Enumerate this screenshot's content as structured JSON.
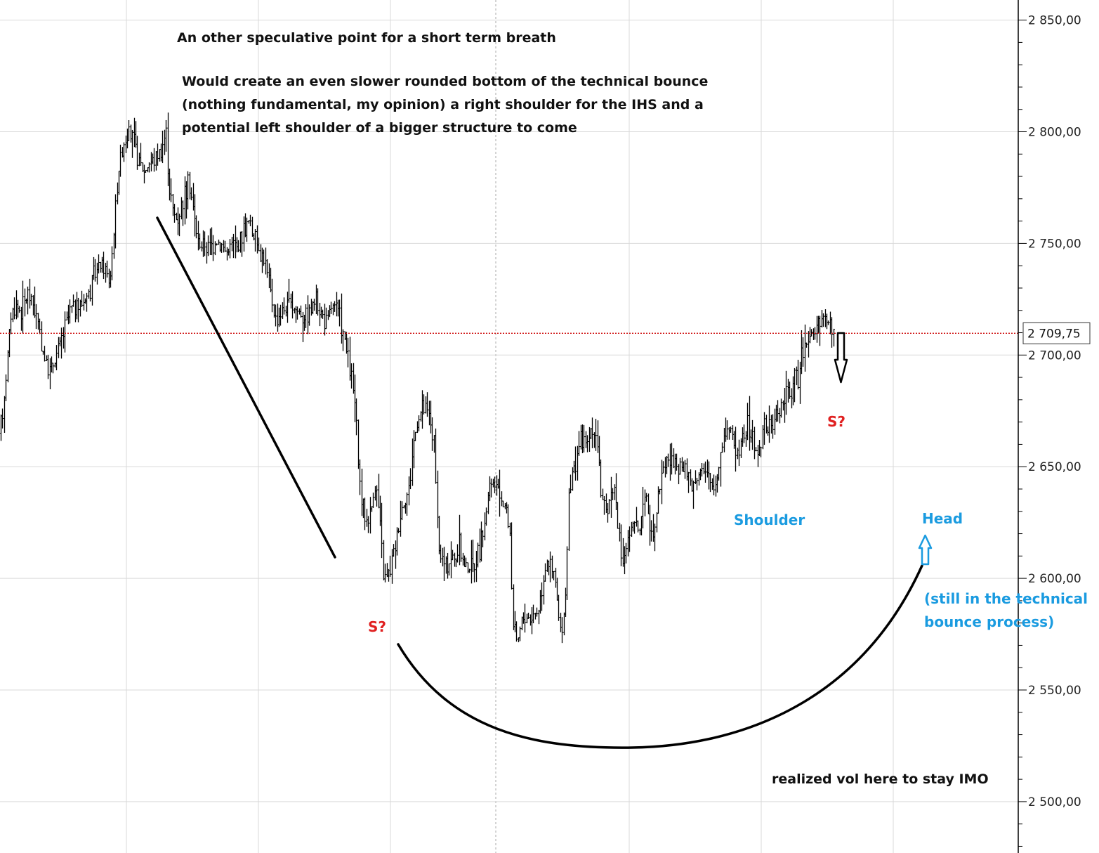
{
  "chart_data": {
    "type": "candlestick",
    "ylim": [
      2477,
      2859
    ],
    "y_ticks": [
      2850,
      2800,
      2750,
      2700,
      2650,
      2600,
      2550,
      2500
    ],
    "y_tick_labels": [
      "2 850,00",
      "2 800,00",
      "2 750,00",
      "2 700,00",
      "2 650,00",
      "2 600,00",
      "2 550,00",
      "2 500,00"
    ],
    "current_price": 2709.75,
    "current_price_label": "2 709,75",
    "price_path": [
      [
        0,
        2665
      ],
      [
        8,
        2690
      ],
      [
        15,
        2718
      ],
      [
        22,
        2722
      ],
      [
        30,
        2720
      ],
      [
        40,
        2728
      ],
      [
        48,
        2722
      ],
      [
        55,
        2712
      ],
      [
        62,
        2700
      ],
      [
        70,
        2692
      ],
      [
        78,
        2698
      ],
      [
        86,
        2706
      ],
      [
        92,
        2712
      ],
      [
        100,
        2720
      ],
      [
        110,
        2722
      ],
      [
        118,
        2724
      ],
      [
        126,
        2728
      ],
      [
        134,
        2736
      ],
      [
        142,
        2740
      ],
      [
        150,
        2738
      ],
      [
        156,
        2732
      ],
      [
        162,
        2756
      ],
      [
        168,
        2782
      ],
      [
        175,
        2795
      ],
      [
        182,
        2800
      ],
      [
        190,
        2795
      ],
      [
        198,
        2786
      ],
      [
        205,
        2782
      ],
      [
        212,
        2786
      ],
      [
        220,
        2788
      ],
      [
        228,
        2792
      ],
      [
        236,
        2800
      ],
      [
        240,
        2778
      ],
      [
        246,
        2764
      ],
      [
        252,
        2760
      ],
      [
        258,
        2768
      ],
      [
        264,
        2774
      ],
      [
        270,
        2776
      ],
      [
        276,
        2762
      ],
      [
        282,
        2750
      ],
      [
        290,
        2750
      ],
      [
        298,
        2748
      ],
      [
        306,
        2752
      ],
      [
        314,
        2750
      ],
      [
        322,
        2746
      ],
      [
        330,
        2750
      ],
      [
        338,
        2748
      ],
      [
        346,
        2756
      ],
      [
        354,
        2760
      ],
      [
        360,
        2754
      ],
      [
        366,
        2750
      ],
      [
        372,
        2746
      ],
      [
        378,
        2740
      ],
      [
        384,
        2730
      ],
      [
        392,
        2716
      ],
      [
        400,
        2720
      ],
      [
        408,
        2722
      ],
      [
        416,
        2722
      ],
      [
        424,
        2720
      ],
      [
        432,
        2718
      ],
      [
        440,
        2720
      ],
      [
        448,
        2724
      ],
      [
        456,
        2720
      ],
      [
        464,
        2714
      ],
      [
        472,
        2722
      ],
      [
        480,
        2720
      ],
      [
        488,
        2710
      ],
      [
        494,
        2700
      ],
      [
        500,
        2690
      ],
      [
        506,
        2676
      ],
      [
        510,
        2648
      ],
      [
        516,
        2632
      ],
      [
        522,
        2626
      ],
      [
        528,
        2630
      ],
      [
        534,
        2644
      ],
      [
        540,
        2628
      ],
      [
        546,
        2600
      ],
      [
        552,
        2600
      ],
      [
        558,
        2608
      ],
      [
        564,
        2618
      ],
      [
        570,
        2630
      ],
      [
        576,
        2635
      ],
      [
        582,
        2640
      ],
      [
        588,
        2660
      ],
      [
        594,
        2670
      ],
      [
        600,
        2676
      ],
      [
        606,
        2675
      ],
      [
        612,
        2672
      ],
      [
        618,
        2660
      ],
      [
        624,
        2612
      ],
      [
        630,
        2608
      ],
      [
        636,
        2604
      ],
      [
        642,
        2610
      ],
      [
        648,
        2608
      ],
      [
        654,
        2614
      ],
      [
        660,
        2606
      ],
      [
        666,
        2606
      ],
      [
        672,
        2604
      ],
      [
        678,
        2610
      ],
      [
        684,
        2614
      ],
      [
        690,
        2626
      ],
      [
        696,
        2640
      ],
      [
        702,
        2642
      ],
      [
        708,
        2640
      ],
      [
        714,
        2636
      ],
      [
        720,
        2632
      ],
      [
        726,
        2620
      ],
      [
        730,
        2580
      ],
      [
        736,
        2570
      ],
      [
        742,
        2580
      ],
      [
        748,
        2584
      ],
      [
        754,
        2582
      ],
      [
        760,
        2584
      ],
      [
        766,
        2586
      ],
      [
        772,
        2598
      ],
      [
        778,
        2610
      ],
      [
        784,
        2604
      ],
      [
        790,
        2600
      ],
      [
        796,
        2580
      ],
      [
        800,
        2572
      ],
      [
        806,
        2600
      ],
      [
        810,
        2638
      ],
      [
        816,
        2648
      ],
      [
        822,
        2658
      ],
      [
        828,
        2662
      ],
      [
        834,
        2660
      ],
      [
        840,
        2664
      ],
      [
        846,
        2668
      ],
      [
        852,
        2660
      ],
      [
        856,
        2632
      ],
      [
        862,
        2630
      ],
      [
        868,
        2636
      ],
      [
        874,
        2642
      ],
      [
        878,
        2632
      ],
      [
        884,
        2606
      ],
      [
        890,
        2612
      ],
      [
        896,
        2620
      ],
      [
        902,
        2624
      ],
      [
        908,
        2622
      ],
      [
        914,
        2626
      ],
      [
        920,
        2636
      ],
      [
        926,
        2622
      ],
      [
        932,
        2624
      ],
      [
        938,
        2640
      ],
      [
        944,
        2650
      ],
      [
        950,
        2654
      ],
      [
        956,
        2652
      ],
      [
        962,
        2648
      ],
      [
        968,
        2650
      ],
      [
        974,
        2648
      ],
      [
        980,
        2646
      ],
      [
        986,
        2640
      ],
      [
        992,
        2646
      ],
      [
        998,
        2650
      ],
      [
        1004,
        2646
      ],
      [
        1010,
        2644
      ],
      [
        1016,
        2640
      ],
      [
        1022,
        2648
      ],
      [
        1028,
        2660
      ],
      [
        1034,
        2668
      ],
      [
        1040,
        2666
      ],
      [
        1046,
        2660
      ],
      [
        1052,
        2658
      ],
      [
        1058,
        2664
      ],
      [
        1064,
        2668
      ],
      [
        1070,
        2664
      ],
      [
        1076,
        2656
      ],
      [
        1082,
        2660
      ],
      [
        1088,
        2668
      ],
      [
        1094,
        2666
      ],
      [
        1100,
        2670
      ],
      [
        1106,
        2674
      ],
      [
        1112,
        2678
      ],
      [
        1118,
        2680
      ],
      [
        1124,
        2684
      ],
      [
        1130,
        2688
      ],
      [
        1136,
        2690
      ],
      [
        1140,
        2696
      ],
      [
        1146,
        2706
      ],
      [
        1152,
        2708
      ],
      [
        1158,
        2710
      ],
      [
        1164,
        2712
      ],
      [
        1170,
        2714
      ],
      [
        1176,
        2716
      ],
      [
        1182,
        2714
      ],
      [
        1188,
        2709.75
      ]
    ]
  },
  "annotations": {
    "title_note": "An other speculative point for a short term breath",
    "paragraph": [
      "Would create an even slower rounded bottom of the technical bounce",
      "(nothing fundamental, my opinion) a right shoulder for the IHS and a",
      "potential left shoulder of a bigger structure to come"
    ],
    "s_label_left": "S?",
    "s_label_right": "S?",
    "shoulder": "Shoulder",
    "head": "Head",
    "bounce_note": [
      "(still in the technical",
      "bounce process)"
    ],
    "vol_note": "realized vol here to stay IMO"
  },
  "colors": {
    "red_labels": "#e02020",
    "blue_labels": "#1a9be0",
    "price_line": "#cc0000",
    "candles": "#000000"
  }
}
